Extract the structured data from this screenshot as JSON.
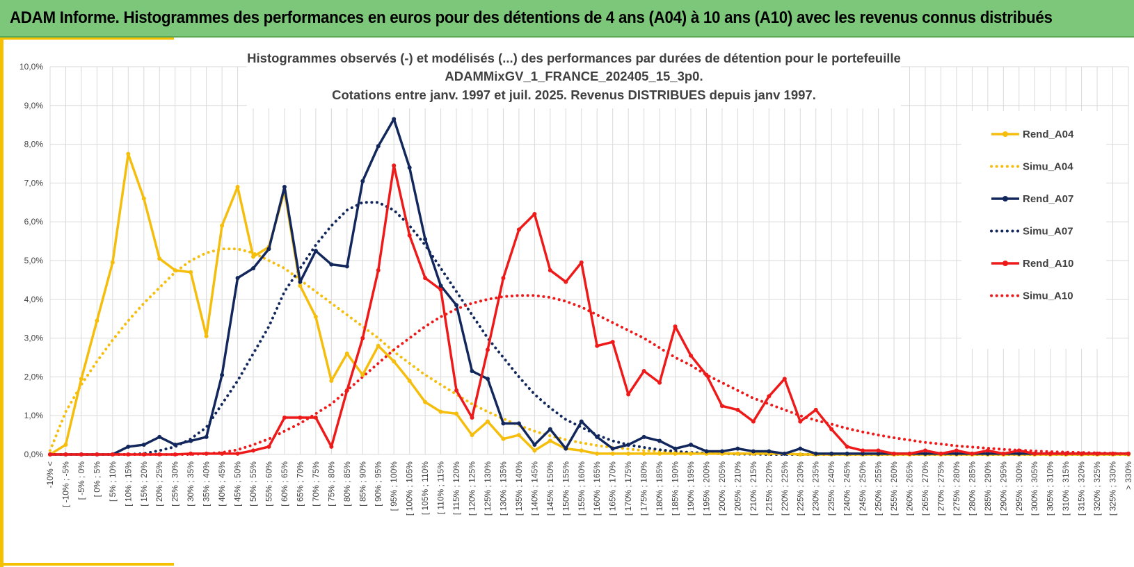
{
  "banner": {
    "title": "ADAM Informe. Histogrammes des performances en euros pour des détentions de 4 ans (A04) à 10 ans (A10) avec les revenus connus distribués"
  },
  "colors": {
    "banner": "#7dc77a",
    "accent": "#f5c000",
    "A04": "#f5bd0c",
    "A07": "#12275c",
    "A10": "#ee1a1a",
    "grid": "#d9d9d9"
  },
  "chart_data": {
    "type": "line",
    "title_lines": [
      "Histogrammes observés (-) et modélisés (...) des performances par durées de détention pour  le portefeuille",
      "ADAMMixGV_1_FRANCE_202405_15_3p0.",
      "Cotations entre janv. 1997 et juil. 2025. Revenus DISTRIBUES depuis janv 1997."
    ],
    "xlabel": "",
    "ylabel": "",
    "ylim": [
      0,
      10
    ],
    "y_ticks": [
      "0,0%",
      "1,0%",
      "2,0%",
      "3,0%",
      "4,0%",
      "5,0%",
      "6,0%",
      "7,0%",
      "8,0%",
      "9,0%",
      "10,0%"
    ],
    "grid": true,
    "legend_position": "right",
    "categories": [
      "-10% <",
      "[ -10% ; -5%",
      "[ -5% ; 0%",
      "[ 0% ; 5%",
      "[ 5% ; 10%",
      "[ 10% ; 15%",
      "[ 15% ; 20%",
      "[ 20% ; 25%",
      "[ 25% ; 30%",
      "[ 30% ; 35%",
      "[ 35% ; 40%",
      "[ 40% ; 45%",
      "[ 45% ; 50%",
      "[ 50% ; 55%",
      "[ 55% ; 60%",
      "[ 60% ; 65%",
      "[ 65% ; 70%",
      "[ 70% ; 75%",
      "[ 75% ; 80%",
      "[ 80% ; 85%",
      "[ 85% ; 90%",
      "[ 90% ; 95%",
      "[ 95% ; 100%",
      "[ 100% ; 105%",
      "[ 105% ; 110%",
      "[ 110% ; 115%",
      "[ 115% ; 120%",
      "[ 120% ; 125%",
      "[ 125% ; 130%",
      "[ 130% ; 135%",
      "[ 135% ; 140%",
      "[ 140% ; 145%",
      "[ 145% ; 150%",
      "[ 150% ; 155%",
      "[ 155% ; 160%",
      "[ 160% ; 165%",
      "[ 165% ; 170%",
      "[ 170% ; 175%",
      "[ 175% ; 180%",
      "[ 180% ; 185%",
      "[ 185% ; 190%",
      "[ 190% ; 195%",
      "[ 195% ; 200%",
      "[ 200% ; 205%",
      "[ 205% ; 210%",
      "[ 210% ; 215%",
      "[ 215% ; 220%",
      "[ 220% ; 225%",
      "[ 225% ; 230%",
      "[ 230% ; 235%",
      "[ 235% ; 240%",
      "[ 240% ; 245%",
      "[ 245% ; 250%",
      "[ 250% ; 255%",
      "[ 255% ; 260%",
      "[ 260% ; 265%",
      "[ 265% ; 270%",
      "[ 270% ; 275%",
      "[ 275% ; 280%",
      "[ 280% ; 285%",
      "[ 285% ; 290%",
      "[ 290% ; 295%",
      "[ 295% ; 300%",
      "[ 300% ; 305%",
      "[ 305% ; 310%",
      "[ 310% ; 315%",
      "[ 315% ; 320%",
      "[ 320% ; 325%",
      "[ 325% ; 330%",
      "> 330%"
    ],
    "series": [
      {
        "name": "Rend_A04",
        "color": "#f5bd0c",
        "style": "solid",
        "values": [
          0,
          0.25,
          1.95,
          3.45,
          4.95,
          7.75,
          6.6,
          5.05,
          4.75,
          4.7,
          3.05,
          5.9,
          6.9,
          5.1,
          5.35,
          6.8,
          4.35,
          3.55,
          1.9,
          2.6,
          2.05,
          2.8,
          2.4,
          1.9,
          1.35,
          1.1,
          1.05,
          0.5,
          0.85,
          0.4,
          0.5,
          0.1,
          0.35,
          0.15,
          0.1,
          0.02,
          0.02,
          0.02,
          0.02,
          0.02,
          0.02,
          0.02,
          0.02,
          0.02,
          0.02,
          0.02,
          0.02,
          0.02,
          0,
          0,
          0,
          0,
          0,
          0,
          0,
          0,
          0,
          0,
          0,
          0,
          0,
          0,
          0,
          0,
          0,
          0,
          0,
          0,
          0,
          0
        ]
      },
      {
        "name": "Simu_A04",
        "color": "#f5bd0c",
        "style": "dotted",
        "values": [
          0.1,
          1.1,
          1.8,
          2.4,
          2.95,
          3.45,
          3.9,
          4.3,
          4.7,
          5.0,
          5.2,
          5.3,
          5.3,
          5.2,
          5.0,
          4.8,
          4.5,
          4.2,
          3.9,
          3.6,
          3.3,
          3.0,
          2.65,
          2.35,
          2.05,
          1.8,
          1.55,
          1.3,
          1.1,
          0.92,
          0.75,
          0.6,
          0.48,
          0.38,
          0.3,
          0.23,
          0.18,
          0.14,
          0.1,
          0.08,
          0.06,
          0.04,
          0.03,
          0.02,
          0.02,
          0.01,
          0.01,
          0.01,
          0,
          0,
          0,
          0,
          0,
          0,
          0,
          0,
          0,
          0,
          0,
          0,
          0,
          0,
          0,
          0,
          0,
          0,
          0,
          0,
          0,
          0
        ]
      },
      {
        "name": "Rend_A07",
        "color": "#12275c",
        "style": "solid",
        "values": [
          0,
          0,
          0,
          0,
          0,
          0.2,
          0.25,
          0.45,
          0.25,
          0.35,
          0.45,
          2.05,
          4.55,
          4.8,
          5.3,
          6.9,
          4.45,
          5.25,
          4.9,
          4.85,
          7.05,
          7.95,
          8.65,
          7.4,
          5.55,
          4.35,
          3.85,
          2.15,
          1.95,
          0.8,
          0.8,
          0.25,
          0.65,
          0.15,
          0.85,
          0.45,
          0.15,
          0.25,
          0.45,
          0.35,
          0.15,
          0.25,
          0.08,
          0.08,
          0.15,
          0.08,
          0.08,
          0.02,
          0.15,
          0.02,
          0.02,
          0.02,
          0.02,
          0.02,
          0.02,
          0.02,
          0.02,
          0.02,
          0.02,
          0.02,
          0.02,
          0.02,
          0.02,
          0.02,
          0.02,
          0.02,
          0.02,
          0.02,
          0.02,
          0.02
        ]
      },
      {
        "name": "Simu_A07",
        "color": "#12275c",
        "style": "dotted",
        "values": [
          0,
          0,
          0,
          0,
          0,
          0,
          0.02,
          0.1,
          0.2,
          0.4,
          0.7,
          1.3,
          1.9,
          2.6,
          3.3,
          4.2,
          4.8,
          5.4,
          5.9,
          6.3,
          6.5,
          6.5,
          6.3,
          5.9,
          5.4,
          4.8,
          4.2,
          3.6,
          3.0,
          2.5,
          2.0,
          1.55,
          1.2,
          0.9,
          0.7,
          0.5,
          0.35,
          0.25,
          0.18,
          0.12,
          0.08,
          0.05,
          0.03,
          0.02,
          0.01,
          0.01,
          0,
          0,
          0,
          0,
          0,
          0,
          0,
          0,
          0,
          0,
          0,
          0,
          0,
          0,
          0,
          0,
          0,
          0,
          0,
          0,
          0,
          0,
          0,
          0
        ]
      },
      {
        "name": "Rend_A10",
        "color": "#ee1a1a",
        "style": "solid",
        "values": [
          0,
          0,
          0,
          0,
          0,
          0,
          0,
          0,
          0,
          0.02,
          0.02,
          0.02,
          0.02,
          0.1,
          0.2,
          0.95,
          0.95,
          0.95,
          0.2,
          1.65,
          3.0,
          4.75,
          7.45,
          5.65,
          4.55,
          4.25,
          1.65,
          0.95,
          2.7,
          4.55,
          5.8,
          6.2,
          4.75,
          4.45,
          4.95,
          2.8,
          2.9,
          1.55,
          2.15,
          1.85,
          3.3,
          2.55,
          2.05,
          1.25,
          1.15,
          0.85,
          1.5,
          1.95,
          0.85,
          1.15,
          0.65,
          0.2,
          0.1,
          0.1,
          0.02,
          0.02,
          0.1,
          0.02,
          0.1,
          0.02,
          0.1,
          0.02,
          0.1,
          0.02,
          0.02,
          0.02,
          0.02,
          0.02,
          0.02,
          0.02
        ]
      },
      {
        "name": "Simu_A10",
        "color": "#ee1a1a",
        "style": "dotted",
        "values": [
          0,
          0,
          0,
          0,
          0,
          0,
          0,
          0,
          0,
          0,
          0.02,
          0.05,
          0.12,
          0.25,
          0.4,
          0.6,
          0.8,
          1.05,
          1.3,
          1.65,
          2.0,
          2.35,
          2.7,
          3.0,
          3.3,
          3.55,
          3.75,
          3.9,
          4.0,
          4.07,
          4.1,
          4.1,
          4.05,
          3.95,
          3.8,
          3.6,
          3.4,
          3.2,
          3.0,
          2.75,
          2.5,
          2.3,
          2.05,
          1.85,
          1.65,
          1.45,
          1.3,
          1.15,
          1.0,
          0.88,
          0.78,
          0.67,
          0.58,
          0.5,
          0.43,
          0.37,
          0.31,
          0.27,
          0.22,
          0.19,
          0.16,
          0.13,
          0.11,
          0.09,
          0.07,
          0.06,
          0.05,
          0.04,
          0.03,
          0.02
        ]
      }
    ]
  }
}
